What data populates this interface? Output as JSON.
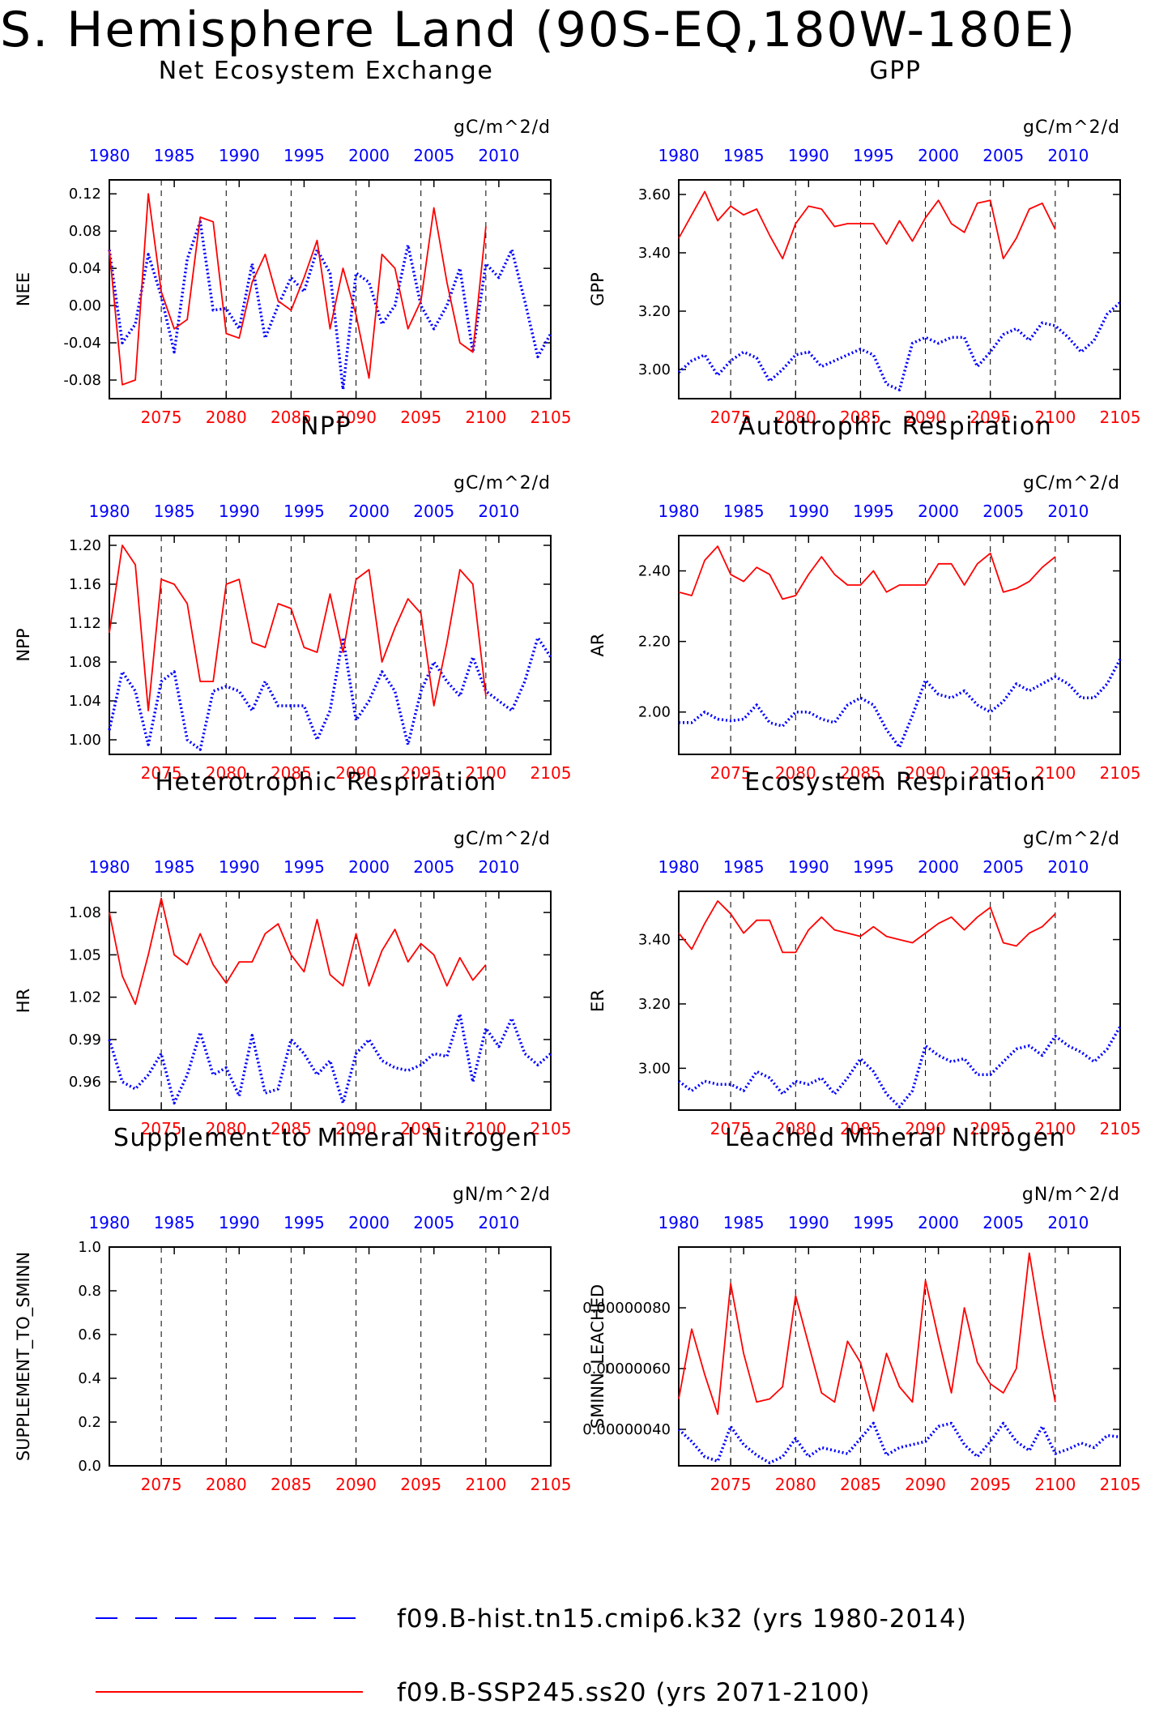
{
  "title": "S. Hemisphere Land (90S-EQ,180W-180E)",
  "legend": [
    {
      "name": "f09.B-hist.tn15.cmip6.k32 (yrs 1980-2014)",
      "color": "#0000ff",
      "style": "dashed"
    },
    {
      "name": "f09.B-SSP245.ss20 (yrs 2071-2100)",
      "color": "#ff0000",
      "style": "solid"
    }
  ],
  "colors": {
    "hist": "#0000ff",
    "ssp": "#ff0000"
  },
  "chart_data": [
    {
      "type": "line",
      "title": "Net Ecosystem Exchange",
      "units": "gC/m^2/d",
      "ylabel": "NEE",
      "ylim": [
        -0.1,
        0.135
      ],
      "yticks": [
        -0.08,
        -0.04,
        0.0,
        0.04,
        0.08,
        0.12
      ],
      "ytick_labels": [
        "-0.08",
        "-0.04",
        "0.00",
        "0.04",
        "0.08",
        "0.12"
      ],
      "x_bottom_ticks": [
        2075,
        2080,
        2085,
        2090,
        2095,
        2100,
        2105
      ],
      "x_top_ticks": [
        1980,
        1985,
        1990,
        1995,
        2000,
        2005,
        2010
      ],
      "x_bottom_range": [
        2071,
        2105
      ],
      "x_top_range": [
        1980,
        2014
      ],
      "series": [
        {
          "name": "f09.B-hist.tn15.cmip6.k32",
          "axis": "top",
          "x_start": 1980,
          "values": [
            0.06,
            -0.04,
            -0.02,
            0.055,
            0.01,
            -0.05,
            0.05,
            0.09,
            -0.005,
            -0.003,
            -0.025,
            0.045,
            -0.035,
            0.0,
            0.03,
            0.015,
            0.06,
            0.035,
            -0.09,
            0.035,
            0.025,
            -0.02,
            0.0,
            0.065,
            0.0,
            -0.025,
            0.0,
            0.04,
            -0.05,
            0.045,
            0.03,
            0.06,
            0.005,
            -0.055,
            -0.03
          ]
        },
        {
          "name": "f09.B-SSP245.ss20",
          "axis": "bottom",
          "x_start": 2071,
          "values": [
            0.06,
            -0.085,
            -0.08,
            0.12,
            0.015,
            -0.025,
            -0.015,
            0.095,
            0.09,
            -0.03,
            -0.035,
            0.025,
            0.055,
            0.005,
            -0.005,
            0.03,
            0.07,
            -0.025,
            0.04,
            -0.01,
            -0.078,
            0.055,
            0.04,
            -0.025,
            0.005,
            0.105,
            0.025,
            -0.04,
            -0.05,
            0.085
          ]
        }
      ]
    },
    {
      "type": "line",
      "title": "GPP",
      "units": "gC/m^2/d",
      "ylabel": "GPP",
      "ylim": [
        2.9,
        3.65
      ],
      "yticks": [
        3.0,
        3.2,
        3.4,
        3.6
      ],
      "ytick_labels": [
        "3.00",
        "3.20",
        "3.40",
        "3.60"
      ],
      "x_bottom_ticks": [
        2075,
        2080,
        2085,
        2090,
        2095,
        2100,
        2105
      ],
      "x_top_ticks": [
        1980,
        1985,
        1990,
        1995,
        2000,
        2005,
        2010
      ],
      "x_bottom_range": [
        2071,
        2105
      ],
      "x_top_range": [
        1980,
        2014
      ],
      "series": [
        {
          "name": "f09.B-hist.tn15.cmip6.k32",
          "axis": "top",
          "x_start": 1980,
          "values": [
            2.99,
            3.03,
            3.05,
            2.98,
            3.03,
            3.06,
            3.04,
            2.96,
            3.0,
            3.05,
            3.06,
            3.01,
            3.03,
            3.05,
            3.07,
            3.05,
            2.95,
            2.93,
            3.09,
            3.11,
            3.09,
            3.11,
            3.11,
            3.01,
            3.06,
            3.12,
            3.14,
            3.1,
            3.16,
            3.15,
            3.11,
            3.06,
            3.1,
            3.19,
            3.23
          ]
        },
        {
          "name": "f09.B-SSP245.ss20",
          "axis": "bottom",
          "x_start": 2071,
          "values": [
            3.45,
            3.53,
            3.61,
            3.51,
            3.56,
            3.53,
            3.55,
            3.46,
            3.38,
            3.5,
            3.56,
            3.55,
            3.49,
            3.5,
            3.5,
            3.5,
            3.43,
            3.51,
            3.44,
            3.52,
            3.58,
            3.5,
            3.47,
            3.57,
            3.58,
            3.38,
            3.45,
            3.55,
            3.57,
            3.48
          ]
        }
      ]
    },
    {
      "type": "line",
      "title": "NPP",
      "units": "gC/m^2/d",
      "ylabel": "NPP",
      "ylim": [
        0.985,
        1.21
      ],
      "yticks": [
        1.0,
        1.04,
        1.08,
        1.12,
        1.16,
        1.2
      ],
      "ytick_labels": [
        "1.00",
        "1.04",
        "1.08",
        "1.12",
        "1.16",
        "1.20"
      ],
      "x_bottom_ticks": [
        2075,
        2080,
        2085,
        2090,
        2095,
        2100,
        2105
      ],
      "x_top_ticks": [
        1980,
        1985,
        1990,
        1995,
        2000,
        2005,
        2010
      ],
      "x_bottom_range": [
        2071,
        2105
      ],
      "x_top_range": [
        1980,
        2014
      ],
      "series": [
        {
          "name": "f09.B-hist.tn15.cmip6.k32",
          "axis": "top",
          "x_start": 1980,
          "values": [
            1.01,
            1.07,
            1.05,
            0.995,
            1.06,
            1.07,
            1.0,
            0.99,
            1.05,
            1.055,
            1.05,
            1.03,
            1.06,
            1.035,
            1.035,
            1.035,
            1.0,
            1.03,
            1.105,
            1.02,
            1.04,
            1.07,
            1.05,
            0.995,
            1.05,
            1.08,
            1.06,
            1.045,
            1.085,
            1.05,
            1.04,
            1.03,
            1.06,
            1.105,
            1.085
          ]
        },
        {
          "name": "f09.B-SSP245.ss20",
          "axis": "bottom",
          "x_start": 2071,
          "values": [
            1.11,
            1.2,
            1.18,
            1.03,
            1.165,
            1.16,
            1.14,
            1.06,
            1.06,
            1.16,
            1.165,
            1.1,
            1.095,
            1.14,
            1.135,
            1.095,
            1.09,
            1.15,
            1.09,
            1.165,
            1.175,
            1.08,
            1.115,
            1.145,
            1.13,
            1.035,
            1.1,
            1.175,
            1.16,
            1.045
          ]
        }
      ]
    },
    {
      "type": "line",
      "title": "Autotrophic Respiration",
      "units": "gC/m^2/d",
      "ylabel": "AR",
      "ylim": [
        1.88,
        2.5
      ],
      "yticks": [
        2.0,
        2.2,
        2.4
      ],
      "ytick_labels": [
        "2.00",
        "2.20",
        "2.40"
      ],
      "x_bottom_ticks": [
        2075,
        2080,
        2085,
        2090,
        2095,
        2100,
        2105
      ],
      "x_top_ticks": [
        1980,
        1985,
        1990,
        1995,
        2000,
        2005,
        2010
      ],
      "x_bottom_range": [
        2071,
        2105
      ],
      "x_top_range": [
        1980,
        2014
      ],
      "series": [
        {
          "name": "f09.B-hist.tn15.cmip6.k32",
          "axis": "top",
          "x_start": 1980,
          "values": [
            1.97,
            1.97,
            2.0,
            1.98,
            1.975,
            1.98,
            2.02,
            1.97,
            1.96,
            2.0,
            2.0,
            1.98,
            1.97,
            2.02,
            2.04,
            2.02,
            1.95,
            1.9,
            1.99,
            2.09,
            2.05,
            2.04,
            2.06,
            2.02,
            2.0,
            2.03,
            2.08,
            2.06,
            2.08,
            2.1,
            2.08,
            2.04,
            2.04,
            2.08,
            2.15
          ]
        },
        {
          "name": "f09.B-SSP245.ss20",
          "axis": "bottom",
          "x_start": 2071,
          "values": [
            2.34,
            2.33,
            2.43,
            2.47,
            2.39,
            2.37,
            2.41,
            2.39,
            2.32,
            2.33,
            2.39,
            2.44,
            2.39,
            2.36,
            2.36,
            2.4,
            2.34,
            2.36,
            2.36,
            2.36,
            2.42,
            2.42,
            2.36,
            2.42,
            2.45,
            2.34,
            2.35,
            2.37,
            2.41,
            2.44
          ]
        }
      ]
    },
    {
      "type": "line",
      "title": "Heterotrophic Respiration",
      "units": "gC/m^2/d",
      "ylabel": "HR",
      "ylim": [
        0.94,
        1.095
      ],
      "yticks": [
        0.96,
        0.99,
        1.02,
        1.05,
        1.08
      ],
      "ytick_labels": [
        "0.96",
        "0.99",
        "1.02",
        "1.05",
        "1.08"
      ],
      "x_bottom_ticks": [
        2075,
        2080,
        2085,
        2090,
        2095,
        2100,
        2105
      ],
      "x_top_ticks": [
        1980,
        1985,
        1990,
        1995,
        2000,
        2005,
        2010
      ],
      "x_bottom_range": [
        2071,
        2105
      ],
      "x_top_range": [
        1980,
        2014
      ],
      "series": [
        {
          "name": "f09.B-hist.tn15.cmip6.k32",
          "axis": "top",
          "x_start": 1980,
          "values": [
            0.99,
            0.96,
            0.955,
            0.965,
            0.98,
            0.945,
            0.965,
            0.995,
            0.965,
            0.97,
            0.95,
            0.993,
            0.952,
            0.955,
            0.99,
            0.98,
            0.965,
            0.975,
            0.945,
            0.98,
            0.99,
            0.975,
            0.97,
            0.968,
            0.972,
            0.98,
            0.978,
            1.008,
            0.96,
            0.998,
            0.985,
            1.005,
            0.98,
            0.972,
            0.98
          ]
        },
        {
          "name": "f09.B-SSP245.ss20",
          "axis": "bottom",
          "x_start": 2071,
          "values": [
            1.08,
            1.035,
            1.015,
            1.05,
            1.09,
            1.05,
            1.043,
            1.065,
            1.043,
            1.03,
            1.045,
            1.045,
            1.065,
            1.072,
            1.05,
            1.038,
            1.075,
            1.036,
            1.028,
            1.065,
            1.028,
            1.053,
            1.068,
            1.045,
            1.058,
            1.05,
            1.028,
            1.048,
            1.032,
            1.043
          ]
        }
      ]
    },
    {
      "type": "line",
      "title": "Ecosystem Respiration",
      "units": "gC/m^2/d",
      "ylabel": "ER",
      "ylim": [
        2.87,
        3.55
      ],
      "yticks": [
        3.0,
        3.2,
        3.4
      ],
      "ytick_labels": [
        "3.00",
        "3.20",
        "3.40"
      ],
      "x_bottom_ticks": [
        2075,
        2080,
        2085,
        2090,
        2095,
        2100,
        2105
      ],
      "x_top_ticks": [
        1980,
        1985,
        1990,
        1995,
        2000,
        2005,
        2010
      ],
      "x_bottom_range": [
        2071,
        2105
      ],
      "x_top_range": [
        1980,
        2014
      ],
      "series": [
        {
          "name": "f09.B-hist.tn15.cmip6.k32",
          "axis": "top",
          "x_start": 1980,
          "values": [
            2.96,
            2.93,
            2.96,
            2.95,
            2.95,
            2.93,
            2.99,
            2.97,
            2.92,
            2.96,
            2.95,
            2.97,
            2.92,
            2.97,
            3.03,
            2.99,
            2.92,
            2.88,
            2.93,
            3.07,
            3.04,
            3.02,
            3.03,
            2.98,
            2.98,
            3.02,
            3.06,
            3.07,
            3.04,
            3.1,
            3.07,
            3.05,
            3.02,
            3.06,
            3.13
          ]
        },
        {
          "name": "f09.B-SSP245.ss20",
          "axis": "bottom",
          "x_start": 2071,
          "values": [
            3.42,
            3.37,
            3.45,
            3.52,
            3.48,
            3.42,
            3.46,
            3.46,
            3.36,
            3.36,
            3.43,
            3.47,
            3.43,
            3.42,
            3.41,
            3.44,
            3.41,
            3.4,
            3.39,
            3.42,
            3.45,
            3.47,
            3.43,
            3.47,
            3.5,
            3.39,
            3.38,
            3.42,
            3.44,
            3.48
          ]
        }
      ]
    },
    {
      "type": "line",
      "title": "Supplement to Mineral Nitrogen",
      "units": "gN/m^2/d",
      "ylabel": "SUPPLEMENT_TO_SMINN",
      "ylim": [
        0.0,
        1.0
      ],
      "yticks": [
        0.0,
        0.2,
        0.4,
        0.6,
        0.8,
        1.0
      ],
      "ytick_labels": [
        "0.0",
        "0.2",
        "0.4",
        "0.6",
        "0.8",
        "1.0"
      ],
      "x_bottom_ticks": [
        2075,
        2080,
        2085,
        2090,
        2095,
        2100,
        2105
      ],
      "x_top_ticks": [
        1980,
        1985,
        1990,
        1995,
        2000,
        2005,
        2010
      ],
      "x_bottom_range": [
        2071,
        2105
      ],
      "x_top_range": [
        1980,
        2014
      ],
      "series": []
    },
    {
      "type": "line",
      "title": "Leached Mineral Nitrogen",
      "units": "gN/m^2/d",
      "ylabel": "SMINN_LEACHED",
      "ylim": [
        2.8e-07,
        1e-06
      ],
      "yticks": [
        4e-07,
        6e-07,
        8e-07
      ],
      "ytick_labels": [
        "0.00000040",
        "0.00000060",
        "0.00000080"
      ],
      "x_bottom_ticks": [
        2075,
        2080,
        2085,
        2090,
        2095,
        2100,
        2105
      ],
      "x_top_ticks": [
        1980,
        1985,
        1990,
        1995,
        2000,
        2005,
        2010
      ],
      "x_bottom_range": [
        2071,
        2105
      ],
      "x_top_range": [
        1980,
        2014
      ],
      "series": [
        {
          "name": "f09.B-hist.tn15.cmip6.k32",
          "axis": "top",
          "x_start": 1980,
          "values": [
            4e-07,
            3.6e-07,
            3.1e-07,
            2.95e-07,
            4.1e-07,
            3.5e-07,
            3.15e-07,
            2.9e-07,
            3.1e-07,
            3.7e-07,
            3.1e-07,
            3.4e-07,
            3.3e-07,
            3.2e-07,
            3.7e-07,
            4.2e-07,
            3.15e-07,
            3.4e-07,
            3.5e-07,
            3.6e-07,
            4.1e-07,
            4.2e-07,
            3.5e-07,
            3.1e-07,
            3.6e-07,
            4.2e-07,
            3.6e-07,
            3.3e-07,
            4.1e-07,
            3.2e-07,
            3.35e-07,
            3.55e-07,
            3.4e-07,
            3.8e-07,
            3.75e-07
          ]
        },
        {
          "name": "f09.B-SSP245.ss20",
          "axis": "bottom",
          "x_start": 2071,
          "values": [
            5e-07,
            7.3e-07,
            5.8e-07,
            4.5e-07,
            8.8e-07,
            6.5e-07,
            4.9e-07,
            5e-07,
            5.4e-07,
            8.4e-07,
            6.8e-07,
            5.2e-07,
            4.9e-07,
            6.9e-07,
            6.2e-07,
            4.6e-07,
            6.5e-07,
            5.4e-07,
            4.9e-07,
            8.9e-07,
            7e-07,
            5.2e-07,
            8e-07,
            6.2e-07,
            5.5e-07,
            5.2e-07,
            6e-07,
            9.8e-07,
            7.2e-07,
            4.9e-07
          ]
        }
      ]
    }
  ]
}
